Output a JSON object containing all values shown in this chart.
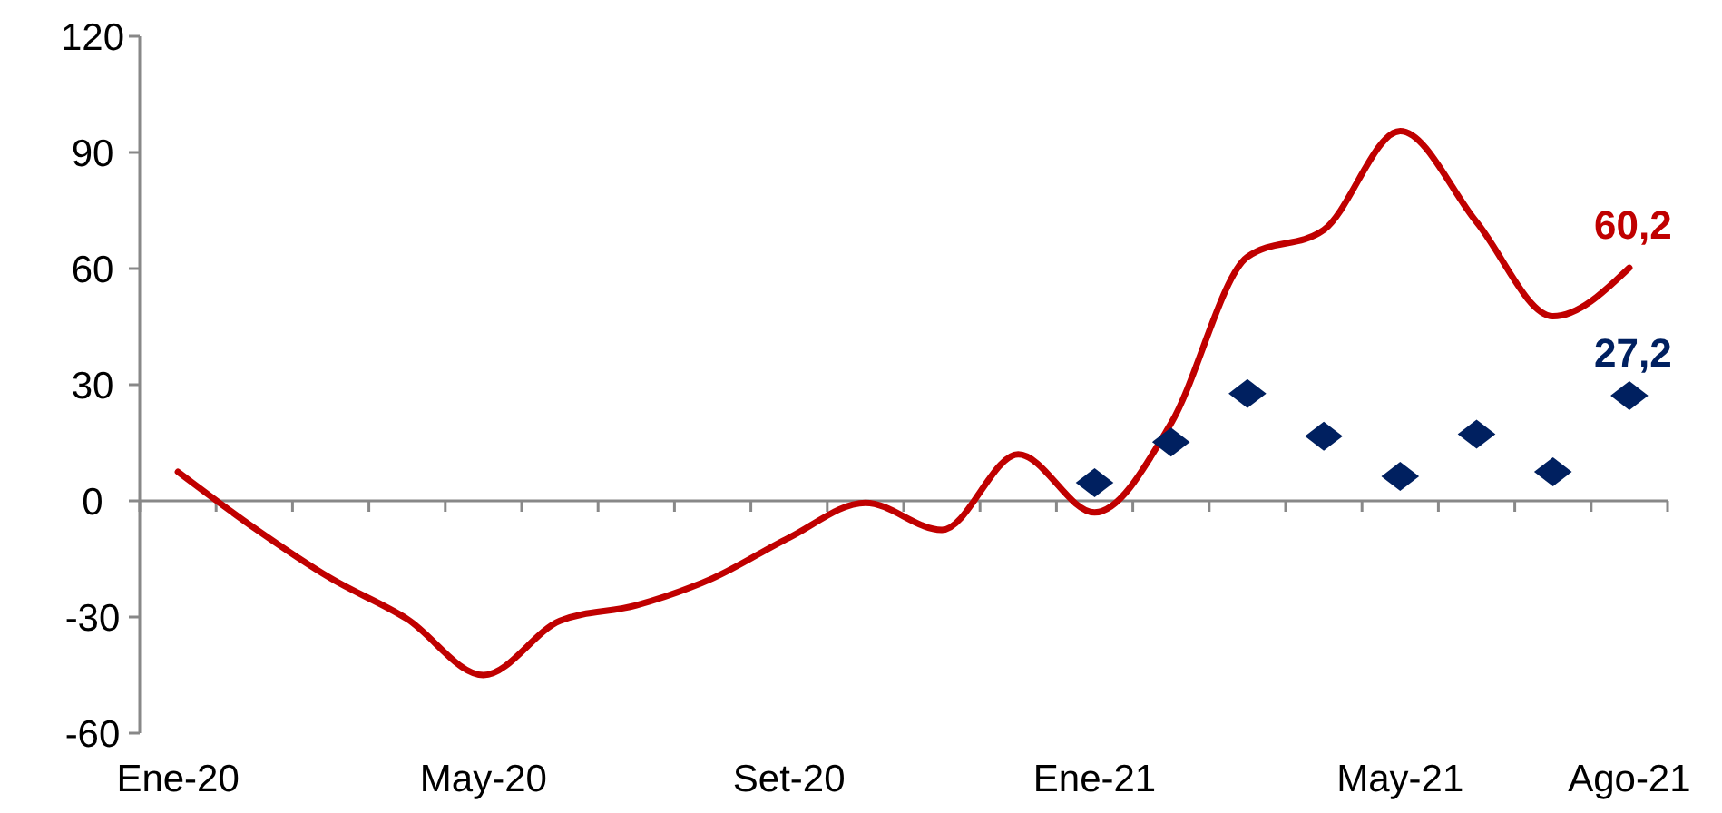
{
  "chart_data": {
    "type": "line",
    "categories": [
      "Ene-20",
      null,
      null,
      null,
      "May-20",
      null,
      null,
      null,
      "Set-20",
      null,
      null,
      null,
      "Ene-21",
      null,
      null,
      null,
      "May-21",
      null,
      null,
      "Ago-21"
    ],
    "series": [
      {
        "color": "#c00000",
        "values": [
          7.5,
          -7,
          -20,
          -30.5,
          -45,
          -31,
          -27,
          -20,
          -9.5,
          -0.5,
          -7.5,
          12,
          -3,
          20,
          63,
          70,
          95.5,
          72,
          47.7,
          60.2
        ],
        "value_labels": [
          null,
          null,
          null,
          null,
          null,
          null,
          null,
          null,
          null,
          null,
          null,
          null,
          null,
          null,
          null,
          null,
          null,
          null,
          null,
          "60,2"
        ]
      },
      {
        "type": "scatter",
        "color": "#002060",
        "marker": "diamond",
        "values": [
          null,
          null,
          null,
          null,
          null,
          null,
          null,
          null,
          null,
          null,
          null,
          null,
          4.7,
          15.2,
          27.7,
          16.7,
          6.3,
          17.2,
          7.5,
          27.2
        ],
        "value_labels": [
          null,
          null,
          null,
          null,
          null,
          null,
          null,
          null,
          null,
          null,
          null,
          null,
          null,
          null,
          null,
          null,
          null,
          null,
          null,
          "27,2"
        ]
      }
    ],
    "ylim": [
      -60,
      120
    ],
    "yticks": [
      -60,
      -30,
      0,
      30,
      60,
      90,
      120
    ]
  }
}
